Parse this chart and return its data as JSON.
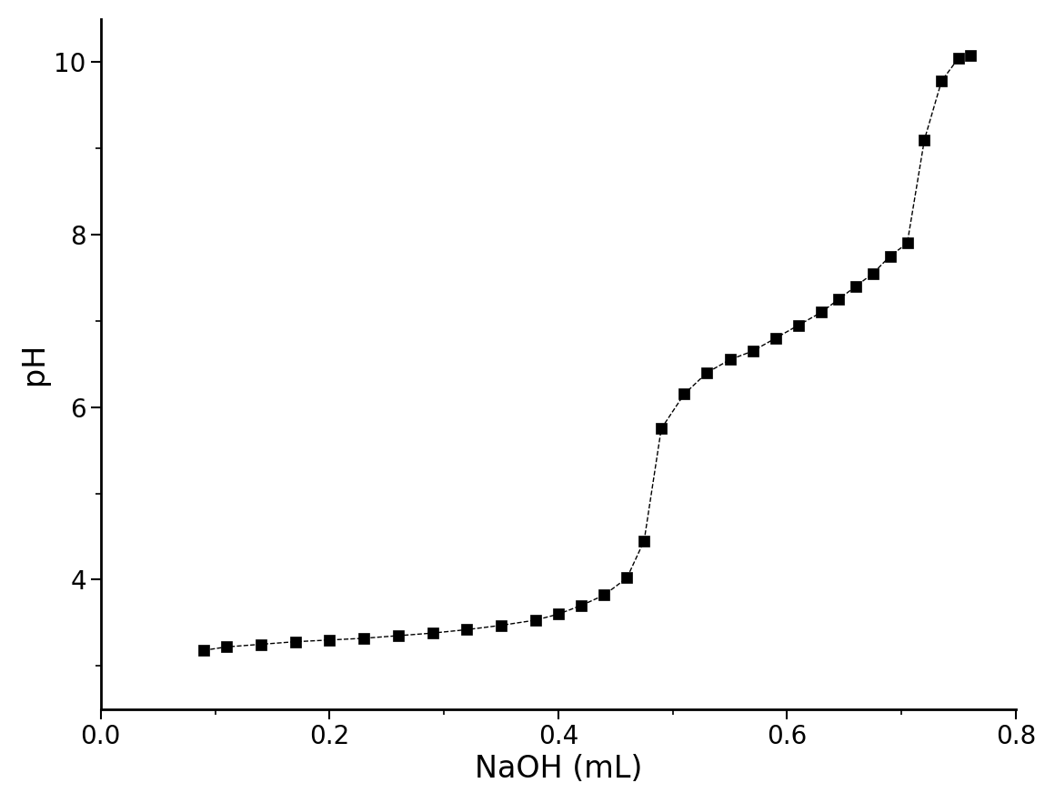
{
  "x": [
    0.09,
    0.11,
    0.14,
    0.17,
    0.2,
    0.23,
    0.26,
    0.29,
    0.32,
    0.35,
    0.38,
    0.4,
    0.42,
    0.44,
    0.46,
    0.475,
    0.49,
    0.51,
    0.53,
    0.55,
    0.57,
    0.59,
    0.61,
    0.63,
    0.645,
    0.66,
    0.675,
    0.69,
    0.705,
    0.72,
    0.735,
    0.75,
    0.76
  ],
  "y": [
    3.18,
    3.22,
    3.25,
    3.28,
    3.3,
    3.32,
    3.35,
    3.38,
    3.42,
    3.47,
    3.53,
    3.6,
    3.7,
    3.82,
    4.02,
    4.45,
    5.75,
    6.15,
    6.4,
    6.55,
    6.65,
    6.8,
    6.95,
    7.1,
    7.25,
    7.4,
    7.55,
    7.75,
    7.9,
    9.1,
    9.78,
    10.05,
    10.08
  ],
  "xlabel": "NaOH (mL)",
  "ylabel": "pH",
  "xlim": [
    0.0,
    0.8
  ],
  "ylim": [
    2.5,
    10.5
  ],
  "xticks": [
    0.0,
    0.2,
    0.4,
    0.6,
    0.8
  ],
  "yticks": [
    4,
    6,
    8,
    10
  ],
  "marker": "s",
  "marker_color": "#000000",
  "marker_size": 9,
  "line_style": "--",
  "line_color": "#000000",
  "line_width": 1.0,
  "xlabel_fontsize": 24,
  "ylabel_fontsize": 24,
  "tick_fontsize": 20,
  "background_color": "#ffffff"
}
